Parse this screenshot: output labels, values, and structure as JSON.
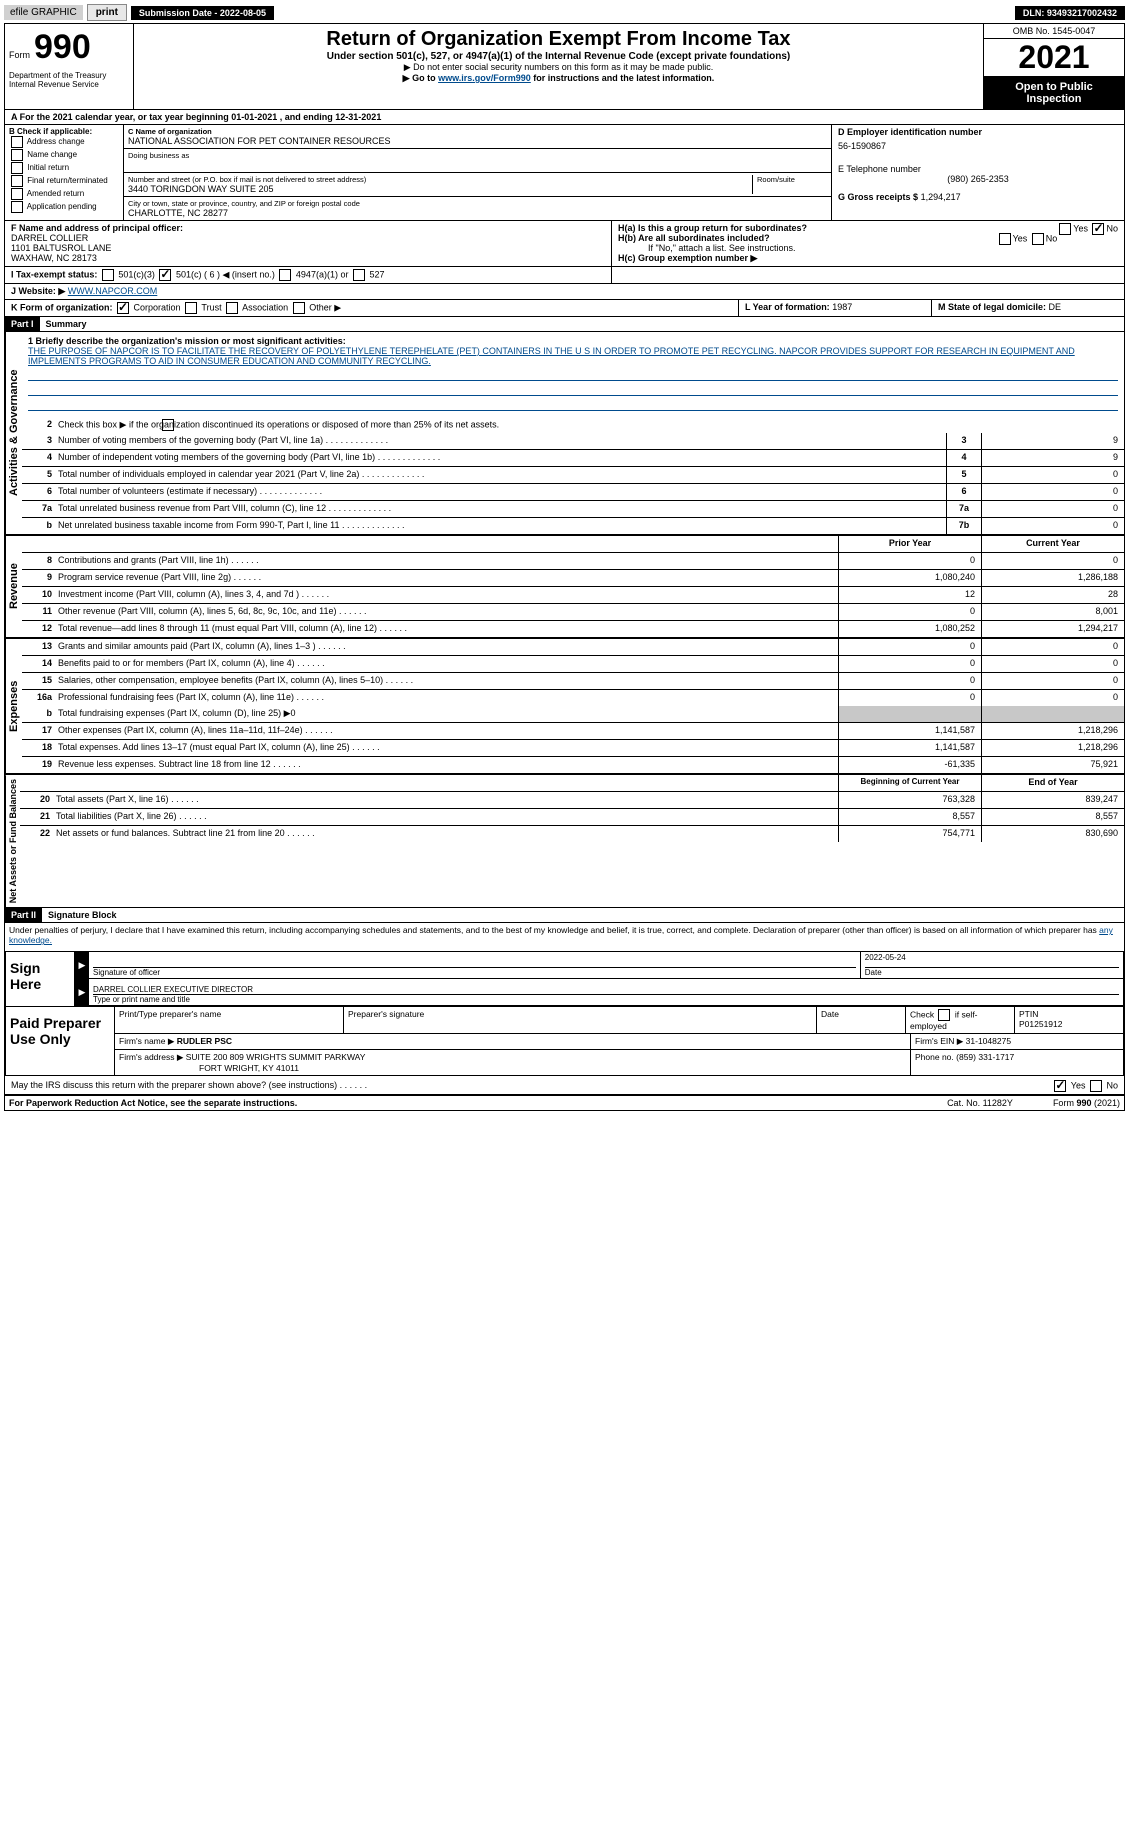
{
  "topbar": {
    "efile": "efile GRAPHIC",
    "print": "print",
    "sub_date_label": "Submission Date - 2022-08-05",
    "dln": "DLN: 93493217002432"
  },
  "header": {
    "form_label": "Form",
    "form_num": "990",
    "dept": "Department of the Treasury Internal Revenue Service",
    "title": "Return of Organization Exempt From Income Tax",
    "subtitle": "Under section 501(c), 527, or 4947(a)(1) of the Internal Revenue Code (except private foundations)",
    "ssn_note": "▶ Do not enter social security numbers on this form as it may be made public.",
    "link_pre": "▶ Go to ",
    "link": "www.irs.gov/Form990",
    "link_post": " for instructions and the latest information.",
    "omb": "OMB No. 1545-0047",
    "year": "2021",
    "open": "Open to Public Inspection"
  },
  "section_a": "A For the 2021 calendar year, or tax year beginning 01-01-2021     , and ending 12-31-2021",
  "box_b": {
    "title": "B Check if applicable:",
    "items": [
      "Address change",
      "Name change",
      "Initial return",
      "Final return/terminated",
      "Amended return",
      "Application pending"
    ]
  },
  "box_c": {
    "name_label": "C Name of organization",
    "name": "NATIONAL ASSOCIATION FOR PET CONTAINER RESOURCES",
    "dba_label": "Doing business as",
    "street_label": "Number and street (or P.O. box if mail is not delivered to street address)",
    "room_label": "Room/suite",
    "street": "3440 TORINGDON WAY SUITE 205",
    "city_label": "City or town, state or province, country, and ZIP or foreign postal code",
    "city": "CHARLOTTE, NC  28277"
  },
  "box_d": {
    "label": "D Employer identification number",
    "value": "56-1590867"
  },
  "box_e": {
    "label": "E Telephone number",
    "value": "(980) 265-2353"
  },
  "box_g": {
    "label": "G Gross receipts $",
    "value": "1,294,217"
  },
  "box_f": {
    "label": "F  Name and address of principal officer:",
    "name": "DARREL COLLIER",
    "addr1": "1101 BALTUSROL LANE",
    "addr2": "WAXHAW, NC  28173"
  },
  "box_h": {
    "a_label": "H(a)  Is this a group return for subordinates?",
    "yes": "Yes",
    "no": "No",
    "b_label": "H(b)  Are all subordinates included?",
    "b_note": "If \"No,\" attach a list. See instructions.",
    "c_label": "H(c)  Group exemption number ▶"
  },
  "box_i": {
    "label": "I  Tax-exempt status:",
    "o1": "501(c)(3)",
    "o2": "501(c) ( 6 ) ◀ (insert no.)",
    "o3": "4947(a)(1) or",
    "o4": "527"
  },
  "box_j": {
    "label": "J  Website: ▶",
    "value": "WWW.NAPCOR.COM"
  },
  "box_k": {
    "label": "K Form of organization:",
    "o1": "Corporation",
    "o2": "Trust",
    "o3": "Association",
    "o4": "Other ▶"
  },
  "box_l": {
    "label": "L Year of formation:",
    "value": "1987"
  },
  "box_m": {
    "label": "M State of legal domicile:",
    "value": "DE"
  },
  "part1": {
    "label": "Part I",
    "title": "Summary"
  },
  "mission": {
    "label": "1  Briefly describe the organization's mission or most significant activities:",
    "text": "THE PURPOSE OF NAPCOR IS TO FACILITATE THE RECOVERY OF POLYETHYLENE TEREPHELATE (PET) CONTAINERS IN THE U S IN ORDER TO PROMOTE PET RECYCLING. NAPCOR PROVIDES SUPPORT FOR RESEARCH IN EQUIPMENT AND IMPLEMENTS PROGRAMS TO AID IN CONSUMER EDUCATION AND COMMUNITY RECYCLING."
  },
  "line2": "Check this box ▶      if the organization discontinued its operations or disposed of more than 25% of its net assets.",
  "sidebar": {
    "gov": "Activities & Governance",
    "rev": "Revenue",
    "exp": "Expenses",
    "net": "Net Assets or Fund Balances"
  },
  "gov_lines": [
    {
      "n": "3",
      "t": "Number of voting members of the governing body (Part VI, line 1a)",
      "box": "3",
      "v": "9"
    },
    {
      "n": "4",
      "t": "Number of independent voting members of the governing body (Part VI, line 1b)",
      "box": "4",
      "v": "9"
    },
    {
      "n": "5",
      "t": "Total number of individuals employed in calendar year 2021 (Part V, line 2a)",
      "box": "5",
      "v": "0"
    },
    {
      "n": "6",
      "t": "Total number of volunteers (estimate if necessary)",
      "box": "6",
      "v": "0"
    },
    {
      "n": "7a",
      "t": "Total unrelated business revenue from Part VIII, column (C), line 12",
      "box": "7a",
      "v": "0"
    },
    {
      "n": "b",
      "t": "Net unrelated business taxable income from Form 990-T, Part I, line 11",
      "box": "7b",
      "v": "0"
    }
  ],
  "cols": {
    "prior": "Prior Year",
    "current": "Current Year"
  },
  "rev_lines": [
    {
      "n": "8",
      "t": "Contributions and grants (Part VIII, line 1h)",
      "p": "0",
      "c": "0"
    },
    {
      "n": "9",
      "t": "Program service revenue (Part VIII, line 2g)",
      "p": "1,080,240",
      "c": "1,286,188"
    },
    {
      "n": "10",
      "t": "Investment income (Part VIII, column (A), lines 3, 4, and 7d )",
      "p": "12",
      "c": "28"
    },
    {
      "n": "11",
      "t": "Other revenue (Part VIII, column (A), lines 5, 6d, 8c, 9c, 10c, and 11e)",
      "p": "0",
      "c": "8,001"
    },
    {
      "n": "12",
      "t": "Total revenue—add lines 8 through 11 (must equal Part VIII, column (A), line 12)",
      "p": "1,080,252",
      "c": "1,294,217"
    }
  ],
  "exp_lines": [
    {
      "n": "13",
      "t": "Grants and similar amounts paid (Part IX, column (A), lines 1–3 )",
      "p": "0",
      "c": "0"
    },
    {
      "n": "14",
      "t": "Benefits paid to or for members (Part IX, column (A), line 4)",
      "p": "0",
      "c": "0"
    },
    {
      "n": "15",
      "t": "Salaries, other compensation, employee benefits (Part IX, column (A), lines 5–10)",
      "p": "0",
      "c": "0"
    },
    {
      "n": "16a",
      "t": "Professional fundraising fees (Part IX, column (A), line 11e)",
      "p": "0",
      "c": "0"
    }
  ],
  "line16b": {
    "n": "b",
    "t": "Total fundraising expenses (Part IX, column (D), line 25) ▶0"
  },
  "exp_lines2": [
    {
      "n": "17",
      "t": "Other expenses (Part IX, column (A), lines 11a–11d, 11f–24e)",
      "p": "1,141,587",
      "c": "1,218,296"
    },
    {
      "n": "18",
      "t": "Total expenses. Add lines 13–17 (must equal Part IX, column (A), line 25)",
      "p": "1,141,587",
      "c": "1,218,296"
    },
    {
      "n": "19",
      "t": "Revenue less expenses. Subtract line 18 from line 12",
      "p": "-61,335",
      "c": "75,921"
    }
  ],
  "cols2": {
    "begin": "Beginning of Current Year",
    "end": "End of Year"
  },
  "net_lines": [
    {
      "n": "20",
      "t": "Total assets (Part X, line 16)",
      "p": "763,328",
      "c": "839,247"
    },
    {
      "n": "21",
      "t": "Total liabilities (Part X, line 26)",
      "p": "8,557",
      "c": "8,557"
    },
    {
      "n": "22",
      "t": "Net assets or fund balances. Subtract line 21 from line 20",
      "p": "754,771",
      "c": "830,690"
    }
  ],
  "part2": {
    "label": "Part II",
    "title": "Signature Block"
  },
  "decl": "Under penalties of perjury, I declare that I have examined this return, including accompanying schedules and statements, and to the best of my knowledge and belief, it is true, correct, and complete. Declaration of preparer (other than officer) is based on all information of which preparer has ",
  "decl_u": "any knowledge.",
  "sign": {
    "label": "Sign Here",
    "sig_officer": "Signature of officer",
    "date": "Date",
    "date_val": "2022-05-24",
    "name": "DARREL COLLIER  EXECUTIVE DIRECTOR",
    "name_label": "Type or print name and title"
  },
  "prep": {
    "label": "Paid Preparer Use Only",
    "h1": "Print/Type preparer's name",
    "h2": "Preparer's signature",
    "h3": "Date",
    "h4_pre": "Check",
    "h4_post": "if self-employed",
    "h5": "PTIN",
    "ptin": "P01251912",
    "firm_label": "Firm's name    ▶",
    "firm": "RUDLER PSC",
    "ein_label": "Firm's EIN ▶",
    "ein": "31-1048275",
    "addr_label": "Firm's address ▶",
    "addr": "SUITE 200 809 WRIGHTS SUMMIT PARKWAY",
    "addr2": "FORT WRIGHT, KY  41011",
    "phone_label": "Phone no.",
    "phone": "(859) 331-1717"
  },
  "discuss": {
    "q": "May the IRS discuss this return with the preparer shown above? (see instructions)",
    "yes": "Yes",
    "no": "No"
  },
  "footer": {
    "left": "For Paperwork Reduction Act Notice, see the separate instructions.",
    "mid": "Cat. No. 11282Y",
    "right_pre": "Form ",
    "right_b": "990",
    "right_post": " (2021)"
  }
}
